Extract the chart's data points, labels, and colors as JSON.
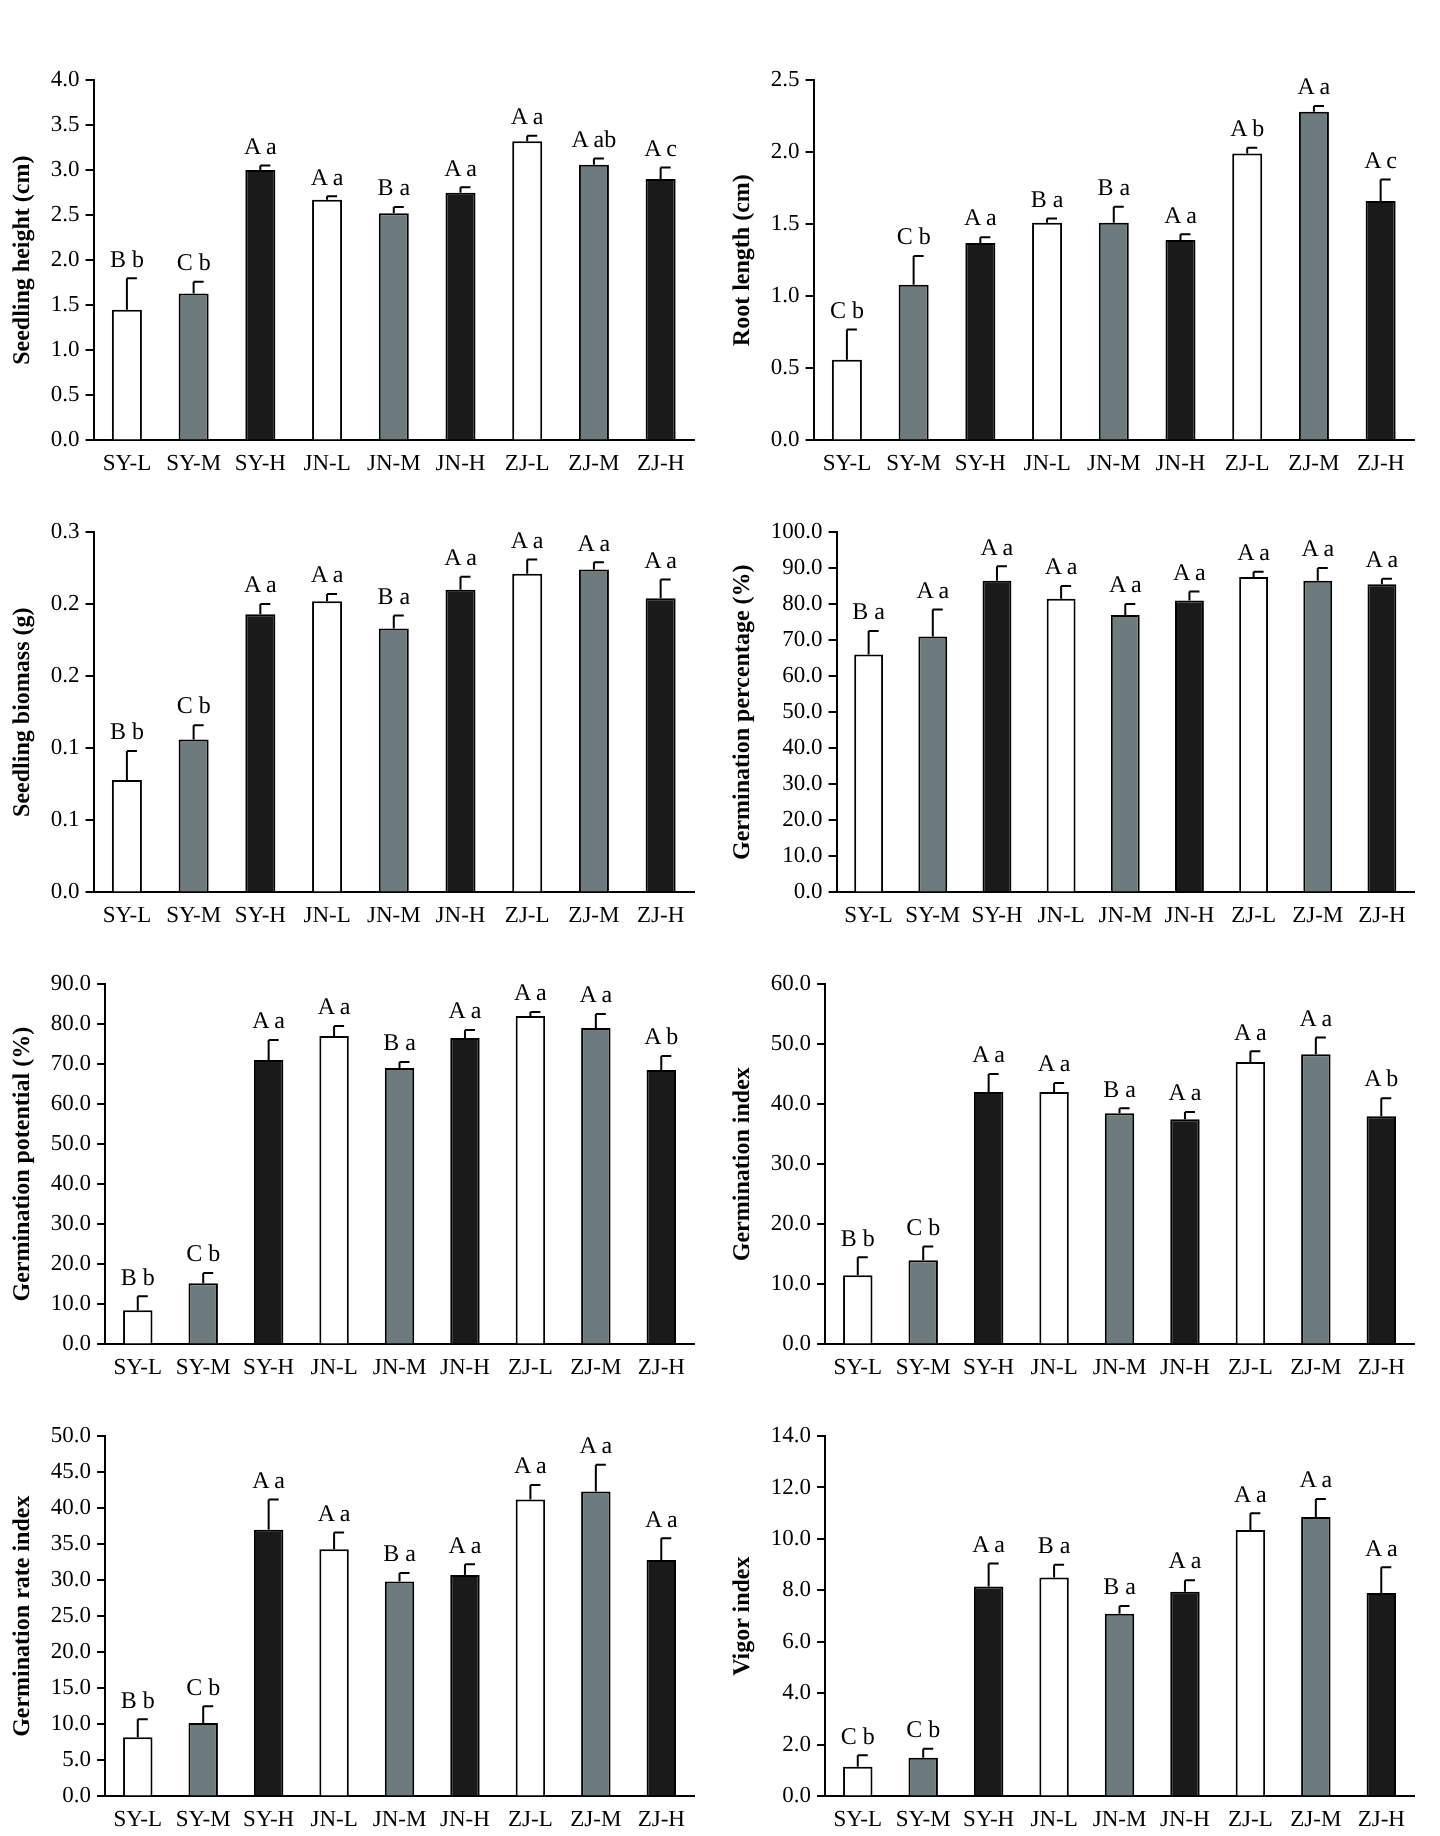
{
  "chart_data": [
    {
      "type": "bar",
      "ylabel": "Seedling height (cm)",
      "categories": [
        "SY-L",
        "SY-M",
        "SY-H",
        "JN-L",
        "JN-M",
        "JN-H",
        "ZJ-L",
        "ZJ-M",
        "ZJ-H"
      ],
      "values": [
        1.45,
        1.63,
        3.0,
        2.67,
        2.52,
        2.75,
        3.32,
        3.06,
        2.9
      ],
      "errors": [
        0.35,
        0.13,
        0.05,
        0.04,
        0.07,
        0.06,
        0.06,
        0.07,
        0.13
      ],
      "value_labels": [
        "B b",
        "C b",
        "A a",
        "A a",
        "B a",
        "A a",
        "A a",
        "A ab",
        "A c"
      ],
      "colors": [
        "#ffffff",
        "#6e7b7e",
        "#1a1a1a",
        "#ffffff",
        "#6e7b7e",
        "#1a1a1a",
        "#ffffff",
        "#6e7b7e",
        "#1a1a1a"
      ],
      "ylim": [
        0,
        4
      ],
      "yticks": [
        {
          "value": 0,
          "label": "0.0"
        },
        {
          "value": 0.5,
          "label": "0.5"
        },
        {
          "value": 1,
          "label": "1.0"
        },
        {
          "value": 1.5,
          "label": "1.5"
        },
        {
          "value": 2,
          "label": "2.0"
        },
        {
          "value": 2.5,
          "label": "2.5"
        },
        {
          "value": 3,
          "label": "3.0"
        },
        {
          "value": 3.5,
          "label": "3.5"
        },
        {
          "value": 4,
          "label": "4.0"
        }
      ],
      "grid": false,
      "legend": false
    },
    {
      "type": "bar",
      "ylabel": "Root length (cm)",
      "categories": [
        "SY-L",
        "SY-M",
        "SY-H",
        "JN-L",
        "JN-M",
        "JN-H",
        "ZJ-L",
        "ZJ-M",
        "ZJ-H"
      ],
      "values": [
        0.56,
        1.08,
        1.37,
        1.51,
        1.51,
        1.39,
        1.99,
        2.28,
        1.66
      ],
      "errors": [
        0.21,
        0.2,
        0.04,
        0.03,
        0.11,
        0.04,
        0.04,
        0.04,
        0.15
      ],
      "value_labels": [
        "C b",
        "C b",
        "A a",
        "B a",
        "B a",
        "A a",
        "A b",
        "A a",
        "A c"
      ],
      "colors": [
        "#ffffff",
        "#6e7b7e",
        "#1a1a1a",
        "#ffffff",
        "#6e7b7e",
        "#1a1a1a",
        "#ffffff",
        "#6e7b7e",
        "#1a1a1a"
      ],
      "ylim": [
        0,
        2.5
      ],
      "yticks": [
        {
          "value": 0,
          "label": "0.0"
        },
        {
          "value": 0.5,
          "label": "0.5"
        },
        {
          "value": 1,
          "label": "1.0"
        },
        {
          "value": 1.5,
          "label": "1.5"
        },
        {
          "value": 2,
          "label": "2.0"
        },
        {
          "value": 2.5,
          "label": "2.5"
        }
      ],
      "grid": false,
      "legend": false
    },
    {
      "type": "bar",
      "ylabel": "Seedling biomass (g)",
      "categories": [
        "SY-L",
        "SY-M",
        "SY-H",
        "JN-L",
        "JN-M",
        "JN-H",
        "ZJ-L",
        "ZJ-M",
        "ZJ-H"
      ],
      "values": [
        0.078,
        0.106,
        0.193,
        0.202,
        0.183,
        0.21,
        0.221,
        0.224,
        0.204
      ],
      "errors": [
        0.02,
        0.01,
        0.007,
        0.005,
        0.009,
        0.009,
        0.01,
        0.005,
        0.013
      ],
      "value_labels": [
        "B b",
        "C b",
        "A a",
        "A a",
        "B a",
        "A a",
        "A a",
        "A a",
        "A a"
      ],
      "colors": [
        "#ffffff",
        "#6e7b7e",
        "#1a1a1a",
        "#ffffff",
        "#6e7b7e",
        "#1a1a1a",
        "#ffffff",
        "#6e7b7e",
        "#1a1a1a"
      ],
      "ylim": [
        0,
        0.25
      ],
      "yticks": [
        {
          "value": 0,
          "label": "0.0"
        },
        {
          "value": 0.05,
          "label": "0.1"
        },
        {
          "value": 0.1,
          "label": "0.1"
        },
        {
          "value": 0.15,
          "label": "0.2"
        },
        {
          "value": 0.2,
          "label": "0.2"
        },
        {
          "value": 0.25,
          "label": "0.3"
        }
      ],
      "grid": false,
      "legend": false
    },
    {
      "type": "bar",
      "ylabel": "Germination percentage (%)",
      "categories": [
        "SY-L",
        "SY-M",
        "SY-H",
        "JN-L",
        "JN-M",
        "JN-H",
        "ZJ-L",
        "ZJ-M",
        "ZJ-H"
      ],
      "values": [
        66,
        71,
        86.5,
        81.5,
        77,
        81,
        87.5,
        86.5,
        85.5
      ],
      "errors": [
        6.5,
        7.5,
        4,
        3.5,
        3,
        2.5,
        1.5,
        3.5,
        1.5
      ],
      "value_labels": [
        "B a",
        "A a",
        "A a",
        "A a",
        "A a",
        "A a",
        "A a",
        "A a",
        "A a"
      ],
      "colors": [
        "#ffffff",
        "#6e7b7e",
        "#1a1a1a",
        "#ffffff",
        "#6e7b7e",
        "#1a1a1a",
        "#ffffff",
        "#6e7b7e",
        "#1a1a1a"
      ],
      "ylim": [
        0,
        100
      ],
      "yticks": [
        {
          "value": 0,
          "label": "0.0"
        },
        {
          "value": 10,
          "label": "10.0"
        },
        {
          "value": 20,
          "label": "20.0"
        },
        {
          "value": 30,
          "label": "30.0"
        },
        {
          "value": 40,
          "label": "40.0"
        },
        {
          "value": 50,
          "label": "50.0"
        },
        {
          "value": 60,
          "label": "60.0"
        },
        {
          "value": 70,
          "label": "70.0"
        },
        {
          "value": 80,
          "label": "80.0"
        },
        {
          "value": 90,
          "label": "90.0"
        },
        {
          "value": 100,
          "label": "100.0"
        }
      ],
      "grid": false,
      "legend": false
    },
    {
      "type": "bar",
      "ylabel": "Germination potential (%)",
      "categories": [
        "SY-L",
        "SY-M",
        "SY-H",
        "JN-L",
        "JN-M",
        "JN-H",
        "ZJ-L",
        "ZJ-M",
        "ZJ-H"
      ],
      "values": [
        8.5,
        15.3,
        71,
        77,
        69,
        76.5,
        82,
        79,
        68.5
      ],
      "errors": [
        3.5,
        2.5,
        5,
        2.5,
        1.5,
        2,
        1,
        3.5,
        3.5
      ],
      "value_labels": [
        "B b",
        "C b",
        "A a",
        "A a",
        "B a",
        "A a",
        "A a",
        "A a",
        "A b"
      ],
      "colors": [
        "#ffffff",
        "#6e7b7e",
        "#1a1a1a",
        "#ffffff",
        "#6e7b7e",
        "#1a1a1a",
        "#ffffff",
        "#6e7b7e",
        "#1a1a1a"
      ],
      "ylim": [
        0,
        90
      ],
      "yticks": [
        {
          "value": 0,
          "label": "0.0"
        },
        {
          "value": 10,
          "label": "10.0"
        },
        {
          "value": 20,
          "label": "20.0"
        },
        {
          "value": 30,
          "label": "30.0"
        },
        {
          "value": 40,
          "label": "40.0"
        },
        {
          "value": 50,
          "label": "50.0"
        },
        {
          "value": 60,
          "label": "60.0"
        },
        {
          "value": 70,
          "label": "70.0"
        },
        {
          "value": 80,
          "label": "80.0"
        },
        {
          "value": 90,
          "label": "90.0"
        }
      ],
      "grid": false,
      "legend": false
    },
    {
      "type": "bar",
      "ylabel": "Germination index",
      "categories": [
        "SY-L",
        "SY-M",
        "SY-H",
        "JN-L",
        "JN-M",
        "JN-H",
        "ZJ-L",
        "ZJ-M",
        "ZJ-H"
      ],
      "values": [
        11.5,
        14,
        42,
        42,
        38.5,
        37.5,
        47,
        48.3,
        38
      ],
      "errors": [
        3,
        2.3,
        3,
        1.5,
        0.8,
        1.2,
        1.8,
        2.8,
        3
      ],
      "value_labels": [
        "B b",
        "C b",
        "A a",
        "A a",
        "B a",
        "A a",
        "A a",
        "A a",
        "A b"
      ],
      "colors": [
        "#ffffff",
        "#6e7b7e",
        "#1a1a1a",
        "#ffffff",
        "#6e7b7e",
        "#1a1a1a",
        "#ffffff",
        "#6e7b7e",
        "#1a1a1a"
      ],
      "ylim": [
        0,
        60
      ],
      "yticks": [
        {
          "value": 0,
          "label": "0.0"
        },
        {
          "value": 10,
          "label": "10.0"
        },
        {
          "value": 20,
          "label": "20.0"
        },
        {
          "value": 30,
          "label": "30.0"
        },
        {
          "value": 40,
          "label": "40.0"
        },
        {
          "value": 50,
          "label": "50.0"
        },
        {
          "value": 60,
          "label": "60.0"
        }
      ],
      "grid": false,
      "legend": false
    },
    {
      "type": "bar",
      "ylabel": "Germination rate index",
      "categories": [
        "SY-L",
        "SY-M",
        "SY-H",
        "JN-L",
        "JN-M",
        "JN-H",
        "ZJ-L",
        "ZJ-M",
        "ZJ-H"
      ],
      "values": [
        8.2,
        10.2,
        37,
        34.3,
        29.8,
        30.7,
        41.2,
        42.3,
        32.8
      ],
      "errors": [
        2.5,
        2.3,
        4.2,
        2.3,
        1.2,
        1.5,
        2,
        3.7,
        3
      ],
      "value_labels": [
        "B b",
        "C b",
        "A a",
        "A a",
        "B a",
        "A a",
        "A a",
        "A a",
        "A a"
      ],
      "colors": [
        "#ffffff",
        "#6e7b7e",
        "#1a1a1a",
        "#ffffff",
        "#6e7b7e",
        "#1a1a1a",
        "#ffffff",
        "#6e7b7e",
        "#1a1a1a"
      ],
      "ylim": [
        0,
        50
      ],
      "yticks": [
        {
          "value": 0,
          "label": "0.0"
        },
        {
          "value": 5,
          "label": "5.0"
        },
        {
          "value": 10,
          "label": "10.0"
        },
        {
          "value": 15,
          "label": "15.0"
        },
        {
          "value": 20,
          "label": "20.0"
        },
        {
          "value": 25,
          "label": "25.0"
        },
        {
          "value": 30,
          "label": "30.0"
        },
        {
          "value": 35,
          "label": "35.0"
        },
        {
          "value": 40,
          "label": "40.0"
        },
        {
          "value": 45,
          "label": "45.0"
        },
        {
          "value": 50,
          "label": "50.0"
        }
      ],
      "grid": false,
      "legend": false
    },
    {
      "type": "bar",
      "ylabel": "Vigor index",
      "categories": [
        "SY-L",
        "SY-M",
        "SY-H",
        "JN-L",
        "JN-M",
        "JN-H",
        "ZJ-L",
        "ZJ-M",
        "ZJ-H"
      ],
      "values": [
        1.15,
        1.5,
        8.15,
        8.5,
        7.1,
        7.95,
        10.35,
        10.85,
        7.9
      ],
      "errors": [
        0.45,
        0.35,
        0.9,
        0.5,
        0.3,
        0.45,
        0.65,
        0.7,
        1.0
      ],
      "value_labels": [
        "C b",
        "C b",
        "A a",
        "B a",
        "B a",
        "A a",
        "A a",
        "A a",
        "A a"
      ],
      "colors": [
        "#ffffff",
        "#6e7b7e",
        "#1a1a1a",
        "#ffffff",
        "#6e7b7e",
        "#1a1a1a",
        "#ffffff",
        "#6e7b7e",
        "#1a1a1a"
      ],
      "ylim": [
        0,
        14
      ],
      "yticks": [
        {
          "value": 0,
          "label": "0.0"
        },
        {
          "value": 2,
          "label": "2.0"
        },
        {
          "value": 4,
          "label": "4.0"
        },
        {
          "value": 6,
          "label": "6.0"
        },
        {
          "value": 8,
          "label": "8.0"
        },
        {
          "value": 10,
          "label": "10.0"
        },
        {
          "value": 12,
          "label": "12.0"
        },
        {
          "value": 14,
          "label": "14.0"
        }
      ],
      "grid": false,
      "legend": false
    }
  ]
}
